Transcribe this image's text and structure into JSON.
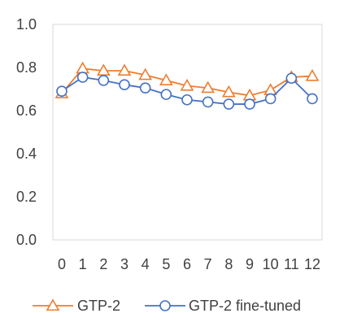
{
  "chart_data": {
    "type": "line",
    "title": "",
    "xlabel": "",
    "ylabel": "",
    "x": [
      "0",
      "1",
      "2",
      "3",
      "4",
      "5",
      "6",
      "7",
      "8",
      "9",
      "10",
      "11",
      "12"
    ],
    "ylim": [
      0,
      1.0
    ],
    "yticks": [
      "0.0",
      "0.2",
      "0.4",
      "0.6",
      "0.8",
      "1.0"
    ],
    "grid": false,
    "legend_position": "bottom",
    "series": [
      {
        "name": "GTP-2",
        "color": "#ED7D31",
        "marker": "triangle",
        "values": [
          0.68,
          0.795,
          0.785,
          0.785,
          0.765,
          0.74,
          0.715,
          0.705,
          0.685,
          0.67,
          0.695,
          0.755,
          0.76
        ]
      },
      {
        "name": "GTP-2 fine-tuned",
        "color": "#4472C4",
        "marker": "circle",
        "values": [
          0.69,
          0.755,
          0.74,
          0.72,
          0.705,
          0.675,
          0.65,
          0.64,
          0.63,
          0.63,
          0.655,
          0.75,
          0.655
        ]
      }
    ]
  }
}
